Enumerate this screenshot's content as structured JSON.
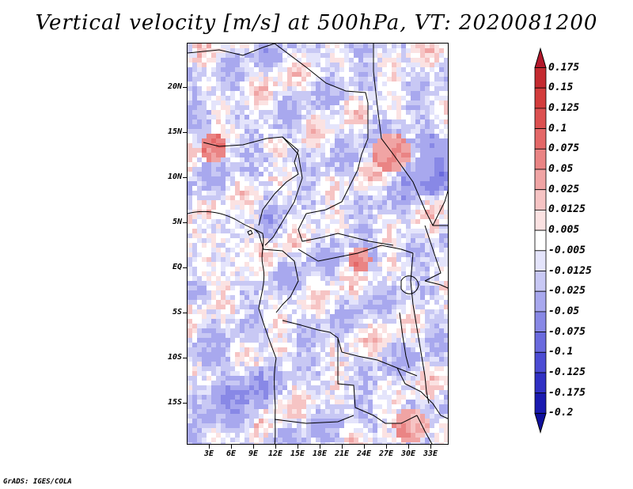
{
  "title": "Vertical velocity [m/s] at 500hPa, VT: 2020081200",
  "footer": "GrADS: IGES/COLA",
  "lat_labels": [
    "20N",
    "15N",
    "10N",
    "5N",
    "EQ",
    "5S",
    "10S",
    "15S"
  ],
  "lon_labels": [
    "3E",
    "6E",
    "9E",
    "12E",
    "15E",
    "18E",
    "21E",
    "24E",
    "27E",
    "30E",
    "33E"
  ],
  "colorbar": {
    "labels": [
      "0.175",
      "0.15",
      "0.125",
      "0.1",
      "0.075",
      "0.05",
      "0.025",
      "0.0125",
      "0.005",
      "-0.005",
      "-0.0125",
      "-0.025",
      "-0.05",
      "-0.075",
      "-0.1",
      "-0.125",
      "-0.175",
      "-0.2"
    ],
    "colors": [
      "#b2182b",
      "#c42a30",
      "#d33c3c",
      "#dc5050",
      "#e46868",
      "#ea8484",
      "#f0a4a4",
      "#f6c4c4",
      "#fbe2e2",
      "#ffffff",
      "#e4e4fb",
      "#c8c8f4",
      "#a8a8ee",
      "#8888e6",
      "#6a6ade",
      "#4c4cd4",
      "#3030c4",
      "#1a1ab0",
      "#10109c"
    ]
  },
  "chart_data": {
    "type": "heatmap",
    "title": "Vertical velocity [m/s] at 500hPa, VT: 2020081200",
    "variable": "Vertical velocity",
    "units": "m/s",
    "level": "500hPa",
    "valid_time": "2020081200",
    "lon_range": [
      0,
      35
    ],
    "lat_range": [
      -20,
      24.5
    ],
    "lat_ticks": [
      20,
      15,
      10,
      5,
      0,
      -5,
      -10,
      -15
    ],
    "lon_ticks": [
      3,
      6,
      9,
      12,
      15,
      18,
      21,
      24,
      27,
      30,
      33
    ],
    "color_levels": [
      0.175,
      0.15,
      0.125,
      0.1,
      0.075,
      0.05,
      0.025,
      0.0125,
      0.005,
      -0.005,
      -0.0125,
      -0.025,
      -0.05,
      -0.075,
      -0.1,
      -0.125,
      -0.175,
      -0.2
    ]
  }
}
